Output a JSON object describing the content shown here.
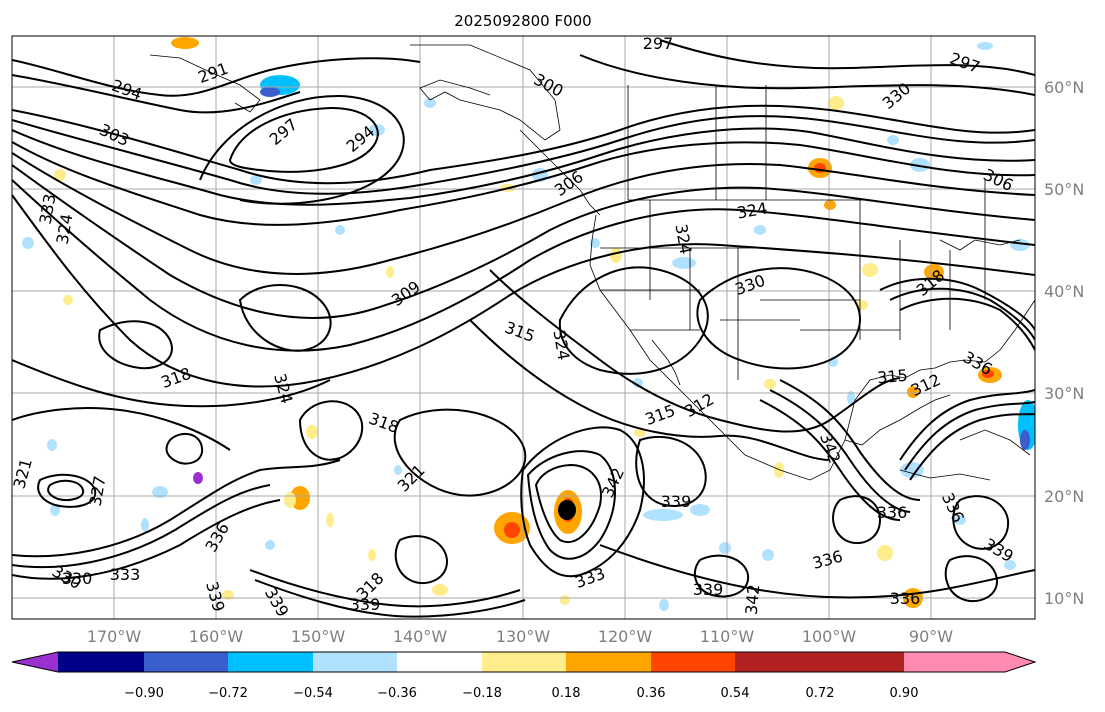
{
  "title": "2025092800 F000",
  "lat_labels": [
    "60°N",
    "50°N",
    "40°N",
    "30°N",
    "20°N",
    "10°N"
  ],
  "lon_labels": [
    "170°W",
    "160°W",
    "150°W",
    "140°W",
    "130°W",
    "120°W",
    "110°W",
    "100°W",
    "90°W"
  ],
  "contour_labels": [
    "297",
    "291",
    "294",
    "300",
    "303",
    "297",
    "294",
    "333",
    "324",
    "309",
    "315",
    "324",
    "318",
    "321",
    "330",
    "327",
    "336",
    "339",
    "333",
    "339",
    "342",
    "336",
    "315",
    "312",
    "330",
    "324",
    "306",
    "318",
    "336",
    "339",
    "333",
    "342",
    "330",
    "297",
    "306",
    "324",
    "330",
    "318",
    "315",
    "312",
    "336",
    "339",
    "339",
    "336",
    "342",
    "339",
    "324",
    "321",
    "318",
    "336"
  ],
  "colorbar": {
    "ticks": [
      "−0.90",
      "−0.72",
      "−0.54",
      "−0.36",
      "−0.18",
      "0.18",
      "0.36",
      "0.54",
      "0.72",
      "0.90"
    ],
    "colors": [
      "#9b30d0",
      "#00008b",
      "#3a5fcd",
      "#00bfff",
      "#b0e2ff",
      "#ffffff",
      "#ffec8b",
      "#ffa500",
      "#ff4500",
      "#b22222",
      "#ff8cb0"
    ]
  }
}
